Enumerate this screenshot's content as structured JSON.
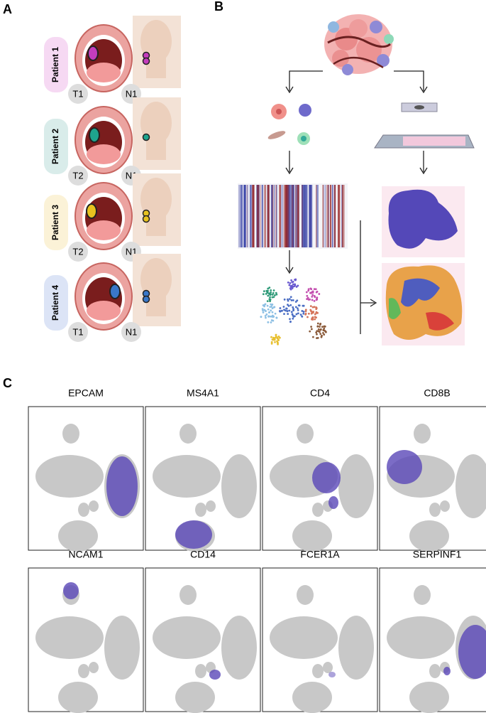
{
  "panels": {
    "A": {
      "label": "A",
      "patients": [
        {
          "name": "Patient 1",
          "t": "T1",
          "n": "N1"
        },
        {
          "name": "Patient 2",
          "t": "T2",
          "n": "N1"
        },
        {
          "name": "Patient 3",
          "t": "T2",
          "n": "N1"
        },
        {
          "name": "Patient 4",
          "t": "T1",
          "n": "N1"
        }
      ]
    },
    "B": {
      "label": "B"
    },
    "C": {
      "label": "C",
      "genes": [
        "EPCAM",
        "MS4A1",
        "CD4",
        "CD8B",
        "NCAM1",
        "CD14",
        "FCER1A",
        "SERPINF1"
      ]
    }
  }
}
